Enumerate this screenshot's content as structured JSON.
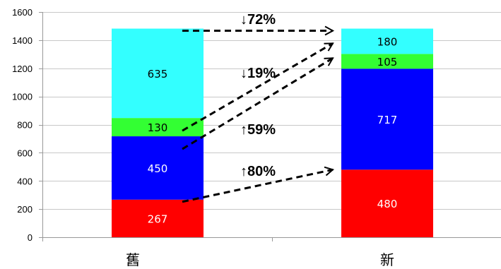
{
  "chart_data": {
    "type": "bar",
    "stacked": true,
    "categories": [
      "舊",
      "新"
    ],
    "series": [
      {
        "color": "#ff0000",
        "label_color": "#ffffff",
        "values": [
          267,
          480
        ]
      },
      {
        "color": "#0000ff",
        "label_color": "#ffffff",
        "values": [
          450,
          717
        ]
      },
      {
        "color": "#33ff33",
        "label_color": "#000000",
        "values": [
          130,
          105
        ]
      },
      {
        "color": "#33ffff",
        "label_color": "#000000",
        "values": [
          635,
          180
        ]
      }
    ],
    "ylim": [
      0,
      1600
    ],
    "yticks": [
      "0",
      "200",
      "400",
      "600",
      "800",
      "1000",
      "1200",
      "1400",
      "1600"
    ],
    "grid": true,
    "legend": "none",
    "annotations": [
      {
        "text": "↓72%",
        "from_series": 3,
        "to_series": 3
      },
      {
        "text": "↓19%",
        "from_series": 2,
        "to_series": 2
      },
      {
        "text": "↑59%",
        "from_series": 1,
        "to_series": 1
      },
      {
        "text": "↑80%",
        "from_series": 0,
        "to_series": 0
      }
    ]
  }
}
